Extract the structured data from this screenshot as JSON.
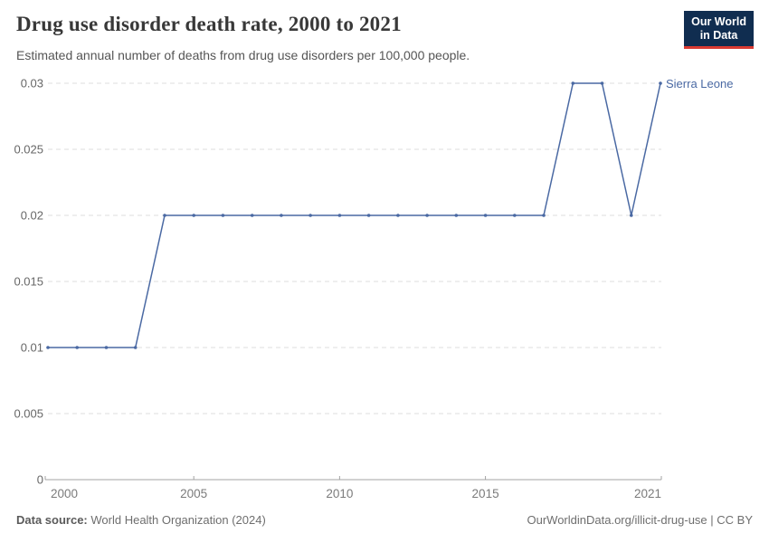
{
  "header": {
    "title": "Drug use disorder death rate, 2000 to 2021",
    "subtitle": "Estimated annual number of deaths from drug use disorders per 100,000 people."
  },
  "logo": {
    "line1": "Our World",
    "line2": "in Data",
    "bg_color": "#102d50",
    "accent_color": "#d93a32"
  },
  "chart_data": {
    "type": "line",
    "title": "Drug use disorder death rate, 2000 to 2021",
    "x": [
      2000,
      2001,
      2002,
      2003,
      2004,
      2005,
      2006,
      2007,
      2008,
      2009,
      2010,
      2011,
      2012,
      2013,
      2014,
      2015,
      2016,
      2017,
      2018,
      2019,
      2020,
      2021
    ],
    "series": [
      {
        "name": "Sierra Leone",
        "color": "#4a69a3",
        "values": [
          0.01,
          0.01,
          0.01,
          0.01,
          0.02,
          0.02,
          0.02,
          0.02,
          0.02,
          0.02,
          0.02,
          0.02,
          0.02,
          0.02,
          0.02,
          0.02,
          0.02,
          0.02,
          0.03,
          0.03,
          0.02,
          0.03
        ]
      }
    ],
    "ylim": [
      0,
      0.03
    ],
    "yticks": [
      0,
      0.005,
      0.01,
      0.015,
      0.02,
      0.025,
      0.03
    ],
    "ytick_labels": [
      "0",
      "0.005",
      "0.01",
      "0.015",
      "0.02",
      "0.025",
      "0.03"
    ],
    "xticks": [
      2000,
      2005,
      2010,
      2015,
      2021
    ],
    "xtick_labels": [
      "2000",
      "2005",
      "2010",
      "2015",
      "2021"
    ],
    "grid": "horizontal-dashed",
    "legend_position": "end-of-line-label"
  },
  "colors": {
    "grid": "#dedede",
    "axis_line": "#a3a3a3",
    "y_tick_text": "#676767",
    "x_tick_text": "#7b7b7b"
  },
  "footer": {
    "source_label": "Data source:",
    "source_value": "World Health Organization (2024)",
    "link_text": "OurWorldinData.org/illicit-drug-use | CC BY"
  }
}
